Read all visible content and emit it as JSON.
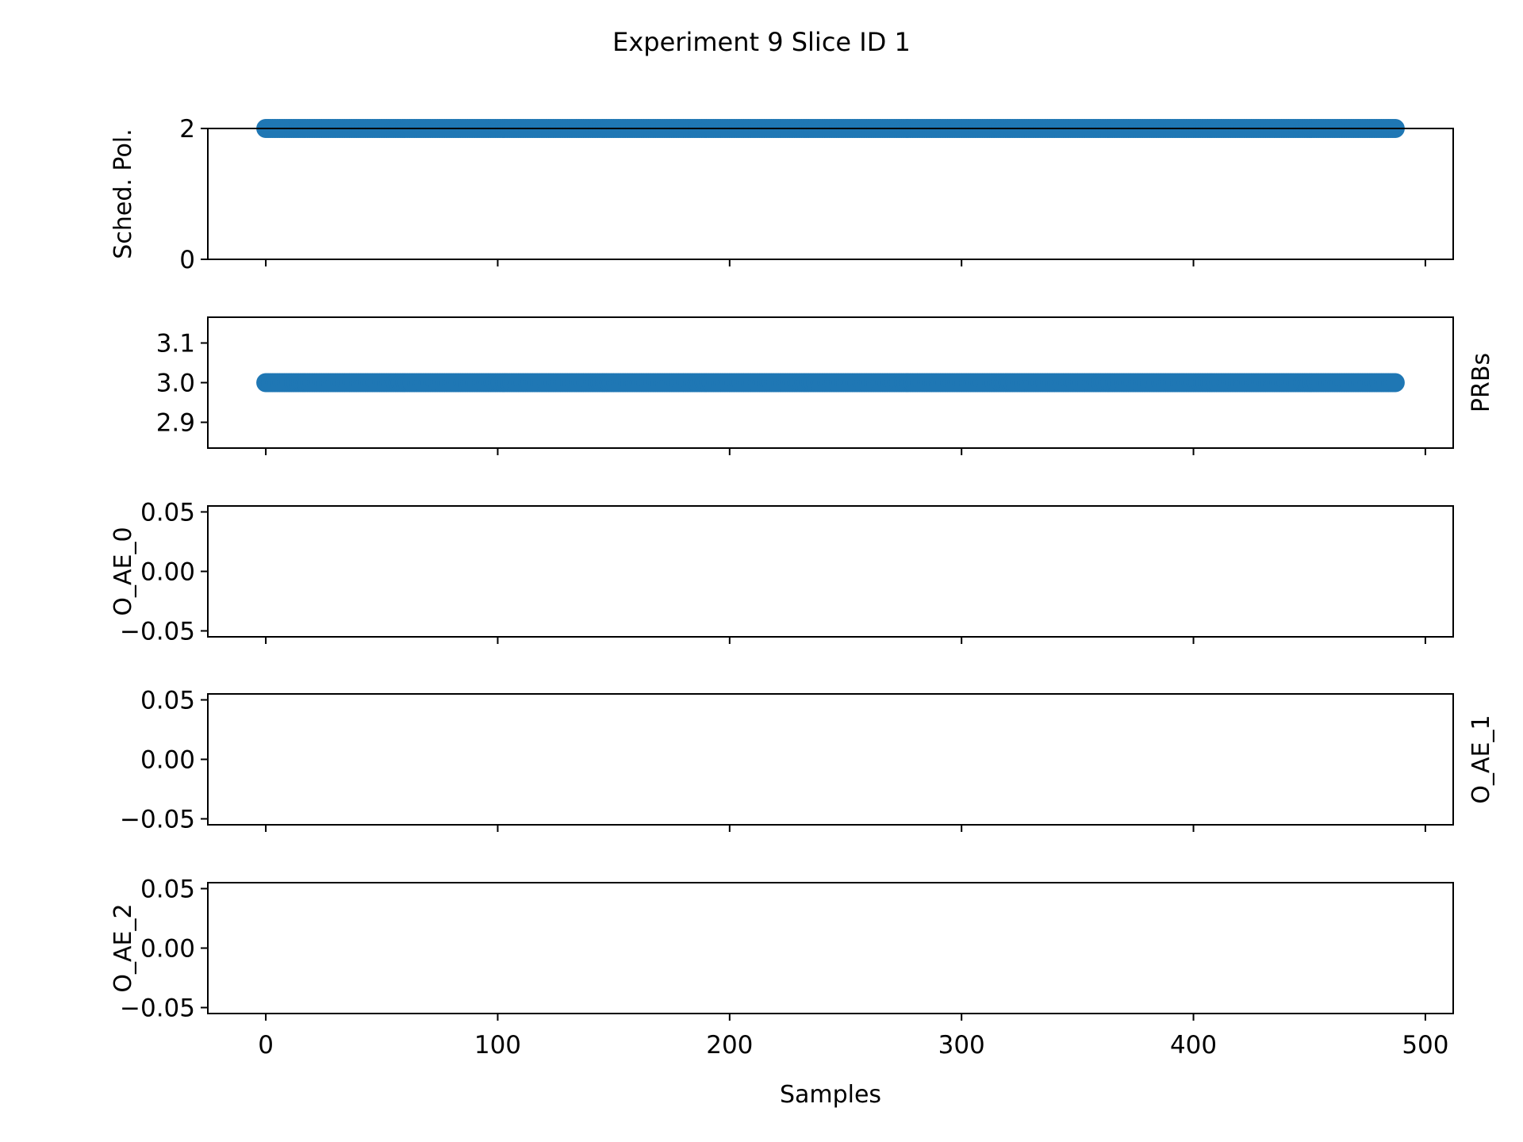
{
  "title": "Experiment 9 Slice ID 1",
  "xlabel": "Samples",
  "colors": {
    "series": "#1f77b4",
    "axes": "#000000"
  },
  "chart_data": [
    {
      "type": "scatter",
      "ylabel": "Sched. Pol.",
      "ylabel_side": "left",
      "xlim": [
        -25,
        512
      ],
      "ylim": [
        0,
        2
      ],
      "yticks": [
        0,
        2
      ],
      "ytick_labels": [
        "0",
        "2"
      ],
      "xticks": [
        0,
        100,
        200,
        300,
        400,
        500
      ],
      "xtick_labels": [],
      "series": [
        {
          "x_start": 0,
          "x_end": 487,
          "step": 1,
          "y": 2
        }
      ]
    },
    {
      "type": "scatter",
      "ylabel": "PRBs",
      "ylabel_side": "right",
      "xlim": [
        -25,
        512
      ],
      "ylim": [
        2.835,
        3.165
      ],
      "yticks": [
        2.9,
        3.0,
        3.1
      ],
      "ytick_labels": [
        "2.9",
        "3.0",
        "3.1"
      ],
      "xticks": [
        0,
        100,
        200,
        300,
        400,
        500
      ],
      "xtick_labels": [],
      "series": [
        {
          "x_start": 0,
          "x_end": 487,
          "step": 1,
          "y": 3.0
        }
      ]
    },
    {
      "type": "scatter",
      "ylabel": "O_AE_0",
      "ylabel_side": "left",
      "xlim": [
        -25,
        512
      ],
      "ylim": [
        -0.055,
        0.055
      ],
      "yticks": [
        -0.05,
        0.0,
        0.05
      ],
      "ytick_labels": [
        "−0.05",
        "0.00",
        "0.05"
      ],
      "xticks": [
        0,
        100,
        200,
        300,
        400,
        500
      ],
      "xtick_labels": [],
      "series": []
    },
    {
      "type": "scatter",
      "ylabel": "O_AE_1",
      "ylabel_side": "right",
      "xlim": [
        -25,
        512
      ],
      "ylim": [
        -0.055,
        0.055
      ],
      "yticks": [
        -0.05,
        0.0,
        0.05
      ],
      "ytick_labels": [
        "−0.05",
        "0.00",
        "0.05"
      ],
      "xticks": [
        0,
        100,
        200,
        300,
        400,
        500
      ],
      "xtick_labels": [],
      "series": []
    },
    {
      "type": "scatter",
      "ylabel": "O_AE_2",
      "ylabel_side": "left",
      "xlim": [
        -25,
        512
      ],
      "ylim": [
        -0.055,
        0.055
      ],
      "yticks": [
        -0.05,
        0.0,
        0.05
      ],
      "ytick_labels": [
        "−0.05",
        "0.00",
        "0.05"
      ],
      "xticks": [
        0,
        100,
        200,
        300,
        400,
        500
      ],
      "xtick_labels": [
        "0",
        "100",
        "200",
        "300",
        "400",
        "500"
      ],
      "series": []
    }
  ]
}
